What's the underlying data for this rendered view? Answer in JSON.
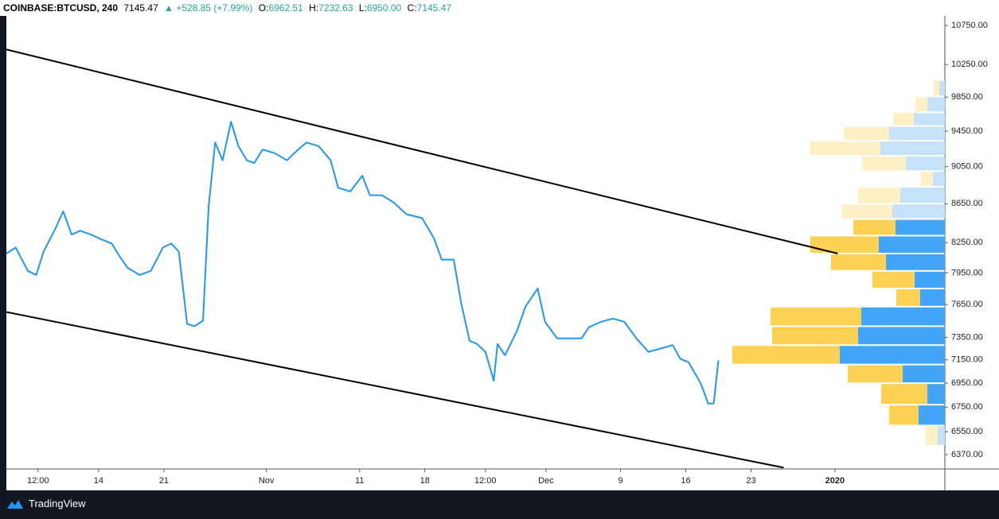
{
  "header": {
    "symbol": "COINBASE:BTCUSD, 240",
    "last": "7145.47",
    "change": "+528.85 (+7.99%)",
    "ohlc": [
      {
        "label": "O:",
        "value": "6962.51"
      },
      {
        "label": "H:",
        "value": "7232.63"
      },
      {
        "label": "L:",
        "value": "6950.00"
      },
      {
        "label": "C:",
        "value": "7145.47"
      }
    ]
  },
  "footer": {
    "brand": "TradingView"
  },
  "chart_data": {
    "type": "line",
    "log_scale": true,
    "x": [
      4.1,
      5.1,
      6.4,
      7.3,
      8.1,
      9.4,
      10.2,
      11.1,
      12.0,
      13.2,
      14.1,
      15.4,
      16.2,
      17.1,
      18.4,
      19.6,
      20.9,
      21.8,
      22.6,
      23.5,
      24.3,
      25.2,
      25.8,
      26.5,
      27.3,
      28.2,
      29.0,
      29.9,
      30.7,
      31.6,
      32.9,
      34.2,
      35.4,
      36.3,
      37.6,
      38.9,
      39.7,
      41.0,
      42.3,
      43.1,
      44.4,
      45.7,
      47.0,
      48.7,
      50.0,
      50.8,
      52.1,
      52.9,
      53.8,
      54.6,
      55.5,
      56.4,
      56.8,
      57.6,
      58.9,
      59.8,
      61.1,
      61.9,
      63.2,
      64.5,
      65.8,
      66.6,
      67.9,
      69.2,
      70.4,
      71.7,
      73.0,
      74.3,
      75.6,
      76.4,
      77.3,
      78.6,
      79.4,
      80.0,
      80.5
    ],
    "series": [
      {
        "name": "BTCUSD",
        "color": "#2196f3",
        "values": [
          8140,
          8200,
          7970,
          7930,
          8160,
          8400,
          8570,
          8330,
          8370,
          8330,
          8290,
          8240,
          8120,
          8000,
          7930,
          7970,
          8200,
          8240,
          8160,
          7470,
          7450,
          7500,
          8620,
          9320,
          9120,
          9560,
          9280,
          9120,
          9090,
          9240,
          9200,
          9120,
          9240,
          9320,
          9280,
          9120,
          8820,
          8780,
          8950,
          8740,
          8740,
          8660,
          8540,
          8500,
          8290,
          8080,
          8080,
          7660,
          7320,
          7290,
          7220,
          6970,
          7290,
          7190,
          7410,
          7630,
          7800,
          7490,
          7340,
          7340,
          7340,
          7440,
          7490,
          7520,
          7490,
          7340,
          7220,
          7250,
          7280,
          7160,
          7130,
          6950,
          6780,
          6780,
          7145.47
        ]
      }
    ],
    "trendlines": [
      {
        "color": "#000000",
        "x": [
          4.1,
          93.3
        ],
        "values": [
          10440,
          8140
        ]
      },
      {
        "color": "#000000",
        "x": [
          4.1,
          87.5
        ],
        "values": [
          7580,
          6270
        ]
      }
    ],
    "volume_profile": {
      "up_color": "#42a5f5",
      "down_color": "#fdd154",
      "faded_up_color": "#c6e2f8",
      "faded_down_color": "#fdf0c4",
      "value_area": [
        6600,
        8490
      ],
      "bins": [
        10060,
        9860,
        9670,
        9510,
        9340,
        9170,
        9000,
        8830,
        8650,
        8490,
        8320,
        8140,
        7970,
        7800,
        7630,
        7450,
        7280,
        7110,
        6950,
        6770,
        6600,
        6440
      ],
      "up": [
        7,
        22,
        39,
        70,
        81,
        49,
        15,
        56,
        66,
        62,
        83,
        74,
        38,
        31,
        105,
        109,
        132,
        53,
        22,
        33,
        9
      ],
      "down": [
        7,
        15,
        26,
        57,
        88,
        55,
        15,
        53,
        64,
        53,
        86,
        69,
        53,
        30,
        114,
        108,
        135,
        69,
        58,
        37,
        15
      ]
    },
    "xlim": [
      4.1,
      104.8
    ],
    "xticks": [
      {
        "value": 7.5,
        "label": "12:00"
      },
      14,
      21,
      {
        "value": 32,
        "label": "Nov"
      },
      {
        "value": 42,
        "label": "11"
      },
      {
        "value": 49,
        "label": "18"
      },
      {
        "value": 55.5,
        "label": "12:00"
      },
      {
        "value": 62,
        "label": "Dec"
      },
      {
        "value": 70,
        "label": "9"
      },
      {
        "value": 77,
        "label": "16"
      },
      {
        "value": 84,
        "label": "23"
      },
      {
        "value": 93,
        "label": "2020",
        "bold": true
      }
    ],
    "ylim": [
      6260,
      10855
    ],
    "yticks": [
      {
        "value": 10750,
        "label": "10750.00"
      },
      {
        "value": 10250,
        "label": "10250.00"
      },
      {
        "value": 9850,
        "label": "9850.00"
      },
      {
        "value": 9450,
        "label": "9450.00"
      },
      {
        "value": 9050,
        "label": "9050.00"
      },
      {
        "value": 8650,
        "label": "8650.00"
      },
      {
        "value": 8250,
        "label": "8250.00"
      },
      {
        "value": 7950,
        "label": "7950.00"
      },
      {
        "value": 7650,
        "label": "7650.00"
      },
      {
        "value": 7350,
        "label": "7350.00"
      },
      {
        "value": 7150,
        "label": "7150.00"
      },
      {
        "value": 6950,
        "label": "6950.00"
      },
      {
        "value": 6750,
        "label": "6750.00"
      },
      {
        "value": 6550,
        "label": "6550.00"
      },
      {
        "value": 6370,
        "label": "6370.00"
      }
    ]
  }
}
